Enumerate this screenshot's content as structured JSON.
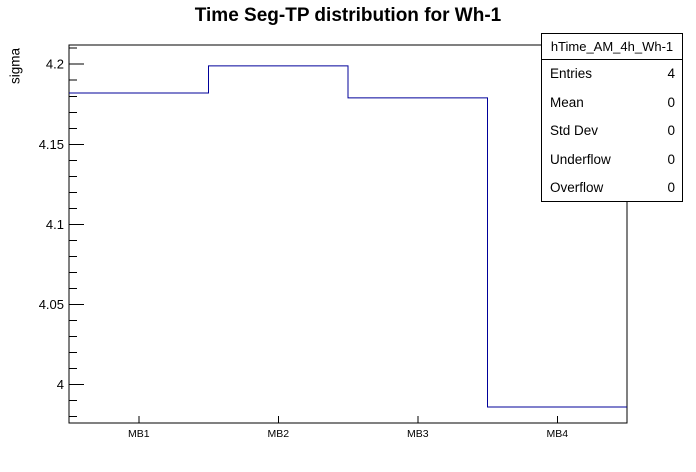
{
  "title": "Time Seg-TP distribution for Wh-1",
  "colors": {
    "background": "#ffffff",
    "frame": "#000000",
    "histogram_line": "#00009a",
    "text": "#000000"
  },
  "chart_data": {
    "type": "step-histogram",
    "title": "Time Seg-TP distribution for Wh-1",
    "xlabel": "",
    "ylabel": "sigma",
    "categories": [
      "MB1",
      "MB2",
      "MB3",
      "MB4"
    ],
    "values": [
      4.182,
      4.199,
      4.179,
      3.986
    ],
    "ylim": [
      3.976,
      4.212
    ],
    "yticks": {
      "major": [
        4.0,
        4.05,
        4.1,
        4.15,
        4.2
      ],
      "major_labels": [
        "4",
        "4.05",
        "4.1",
        "4.15",
        "4.2"
      ],
      "minor_step": 0.01,
      "minor_range": [
        3.98,
        4.21
      ]
    },
    "grid": false,
    "legend_position": "none"
  },
  "stats_box": {
    "header": "hTime_AM_4h_Wh-1",
    "rows": [
      {
        "label": "Entries",
        "value": "4"
      },
      {
        "label": "Mean",
        "value": "0"
      },
      {
        "label": "Std Dev",
        "value": "0"
      },
      {
        "label": "Underflow",
        "value": "0"
      },
      {
        "label": "Overflow",
        "value": "0"
      }
    ]
  }
}
